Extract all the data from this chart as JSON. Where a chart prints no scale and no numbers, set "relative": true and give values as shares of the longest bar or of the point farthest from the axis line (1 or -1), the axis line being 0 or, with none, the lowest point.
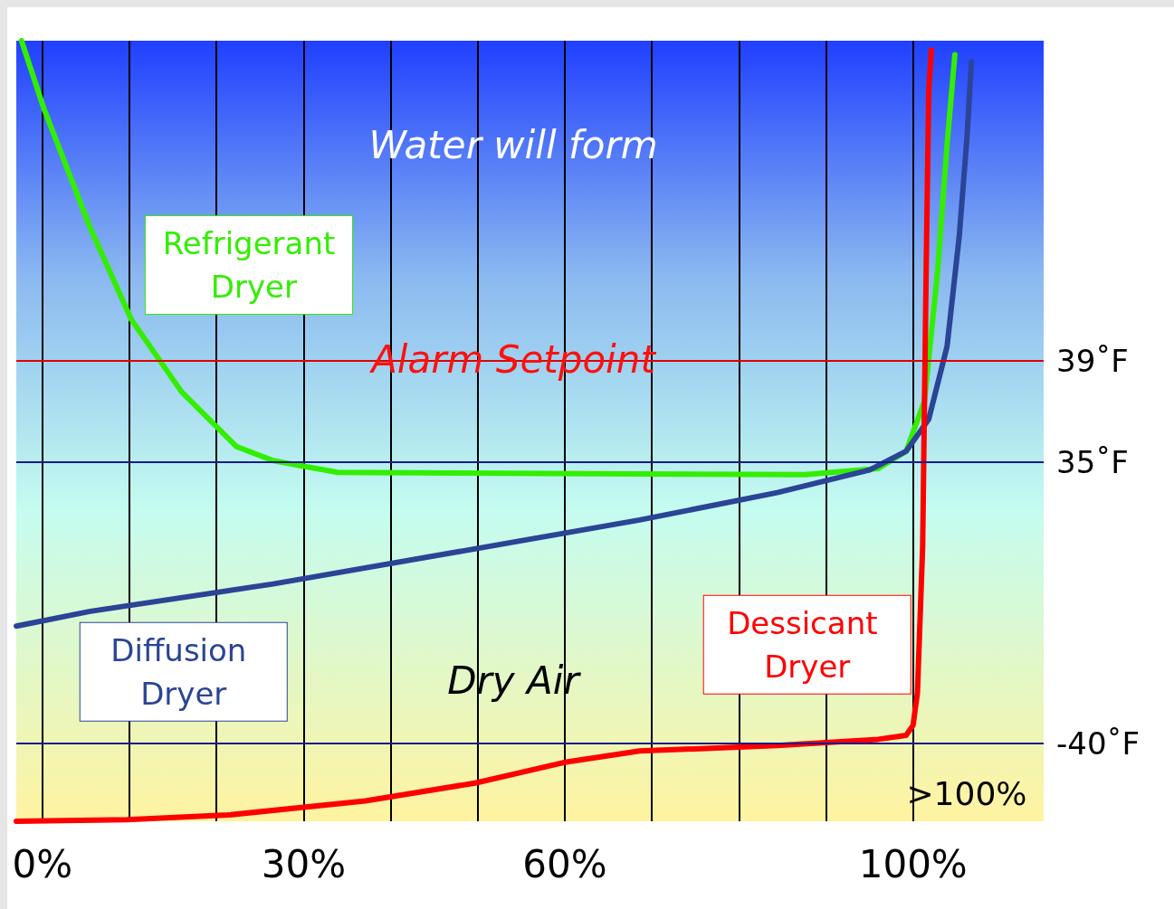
{
  "chart_data": {
    "type": "line",
    "relative": true,
    "xlim": [
      -3,
      115
    ],
    "xticks": [
      {
        "value": 0,
        "label": "0%"
      },
      {
        "value": 10,
        "label": null
      },
      {
        "value": 20,
        "label": null
      },
      {
        "value": 30,
        "label": "30%"
      },
      {
        "value": 40,
        "label": null
      },
      {
        "value": 50,
        "label": null
      },
      {
        "value": 60,
        "label": "60%"
      },
      {
        "value": 70,
        "label": null
      },
      {
        "value": 80,
        "label": null
      },
      {
        "value": 90,
        "label": null
      },
      {
        "value": 100,
        "label": "100%"
      }
    ],
    "grid": "x",
    "legend": false,
    "marker": "none",
    "line_style": "solid",
    "series": [
      {
        "name": "Refrigerant Dryer",
        "color": "#33ee00",
        "x": [
          -2.4,
          0.2,
          5.5,
          10.2,
          16.0,
          22.3,
          26.5,
          33.9,
          47.6,
          68.6,
          87.6,
          96.0,
          99.2,
          101.3,
          102.8,
          103.9,
          104.8
        ],
        "values": [
          1,
          0.912,
          0.76,
          0.643,
          0.55,
          0.48,
          0.462,
          0.447,
          0.446,
          0.445,
          0.444,
          0.452,
          0.474,
          0.538,
          0.702,
          0.866,
          0.982
        ]
      },
      {
        "name": "Diffusion Dryer",
        "color": "#2b4496",
        "x": [
          -3,
          5.5,
          26.5,
          47.6,
          68.6,
          84.4,
          95.0,
          99.2,
          101.8,
          103.9,
          105.3,
          106.2,
          106.7
        ],
        "values": [
          0.25,
          0.269,
          0.304,
          0.345,
          0.386,
          0.421,
          0.45,
          0.474,
          0.515,
          0.608,
          0.749,
          0.877,
          0.973
        ]
      },
      {
        "name": "Dessicant Dryer",
        "color": "#ff0000",
        "x": [
          -3,
          9.7,
          21.3,
          37.1,
          49.7,
          60.2,
          68.6,
          84.4,
          96.0,
          99.2,
          100.0,
          100.5,
          101.1,
          101.5,
          101.8,
          102.1
        ],
        "values": [
          0,
          0.002,
          0.008,
          0.026,
          0.049,
          0.076,
          0.09,
          0.097,
          0.105,
          0.11,
          0.123,
          0.164,
          0.351,
          0.702,
          0.936,
          0.988
        ]
      }
    ],
    "ref_lines": [
      {
        "axis": "y",
        "value": 0.588,
        "label": "39˚F",
        "color": "#e00000"
      },
      {
        "axis": "y",
        "value": 0.456,
        "label": "35˚F",
        "color": "#1a1a8c"
      },
      {
        "axis": "y",
        "value": 0.096,
        "label": "-40˚F",
        "color": "#1a1a8c"
      }
    ],
    "annotations": [
      "Water will form",
      "Alarm Setpoint",
      "Dry Air",
      ">100%"
    ]
  }
}
